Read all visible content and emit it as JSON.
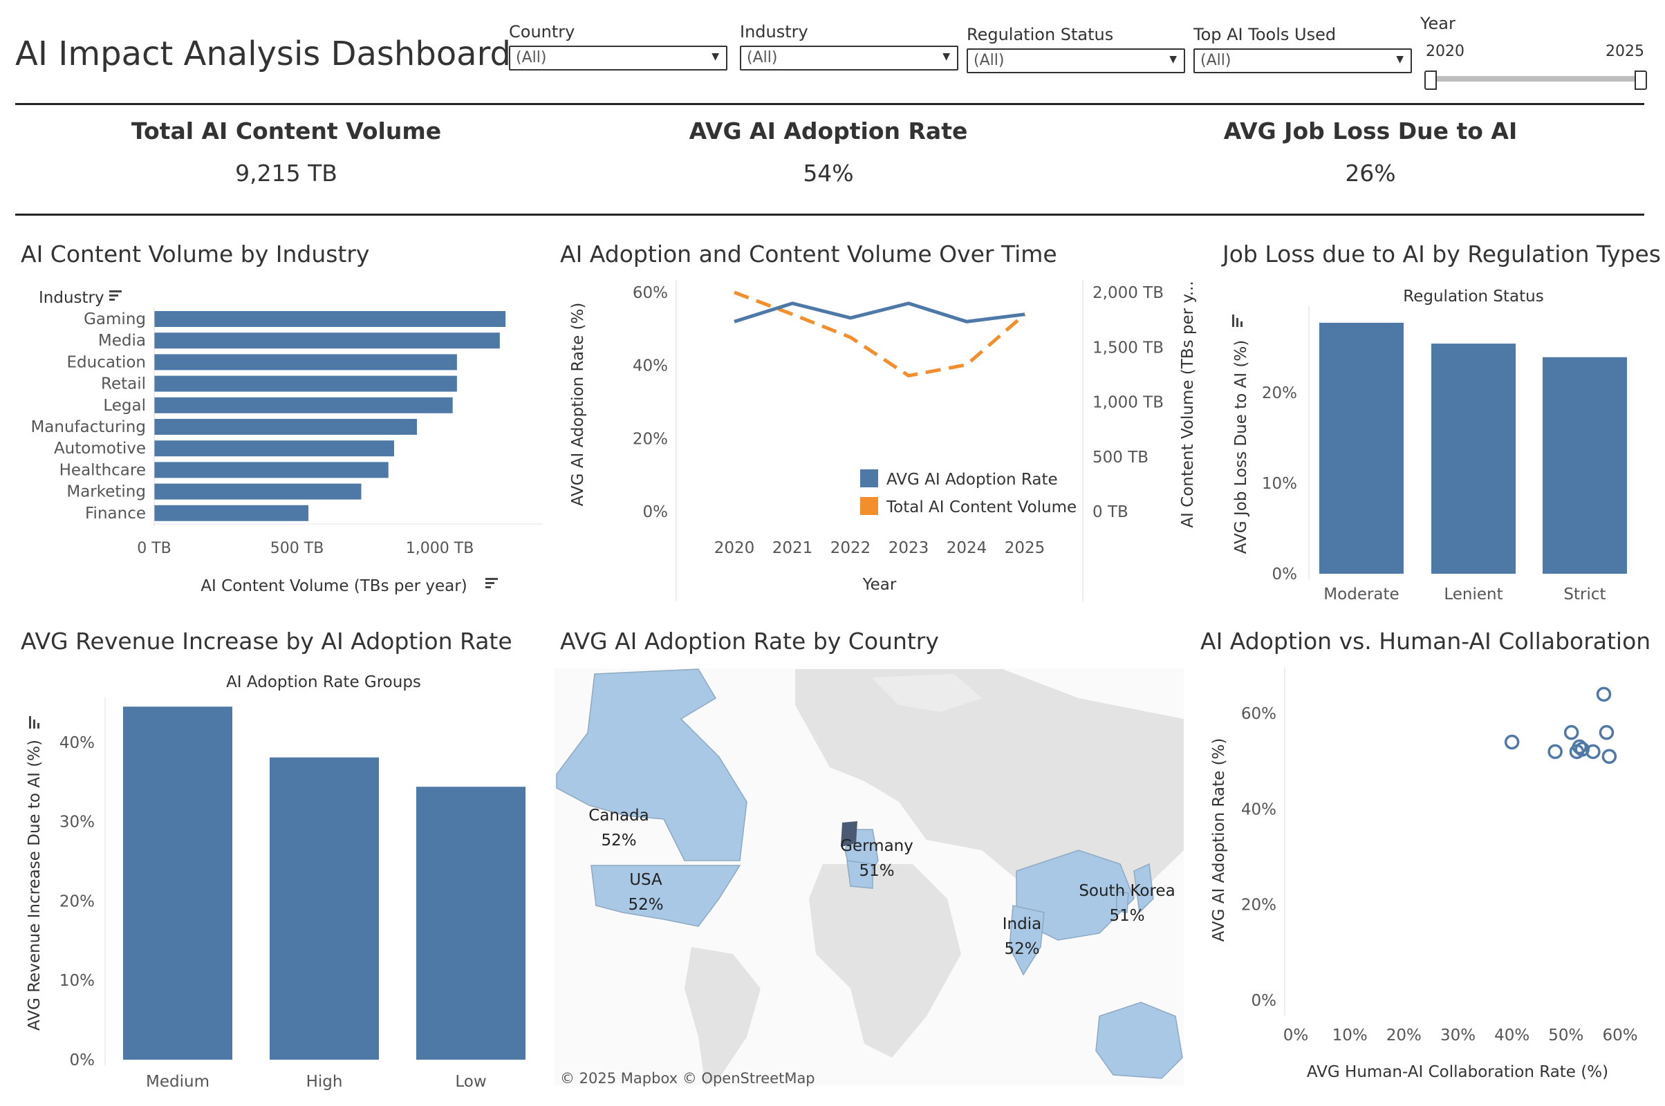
{
  "header": {
    "title": "AI Impact Analysis Dashboard"
  },
  "filters": [
    {
      "label": "Country",
      "value": "(All)"
    },
    {
      "label": "Industry",
      "value": "(All)"
    },
    {
      "label": "Regulation Status",
      "value": "(All)"
    },
    {
      "label": "Top AI Tools Used",
      "value": "(All)"
    }
  ],
  "year_slider": {
    "label": "Year",
    "min": "2020",
    "max": "2025",
    "value_min": 2020,
    "value_max": 2025
  },
  "kpis": [
    {
      "title": "Total AI Content Volume",
      "value": "9,215 TB"
    },
    {
      "title": "AVG AI Adoption Rate",
      "value": "54%"
    },
    {
      "title": "AVG Job Loss Due to AI",
      "value": "26%"
    }
  ],
  "panels": {
    "content_by_industry": {
      "title": "AI Content Volume by Industry"
    },
    "adoption_over_time": {
      "title": "AI Adoption and Content Volume Over Time"
    },
    "job_loss_regulation": {
      "title": "Job Loss due to AI by Regulation Types"
    },
    "revenue_by_adoption": {
      "title": "AVG Revenue Increase by AI Adoption Rate"
    },
    "adoption_by_country": {
      "title": "AVG AI Adoption Rate by Country",
      "attribution": "© 2025 Mapbox  © OpenStreetMap"
    },
    "adoption_vs_collab": {
      "title": "AI Adoption vs. Human-AI Collaboration"
    }
  },
  "colors": {
    "primary": "#4e79a7",
    "secondary": "#f28e2b",
    "map_fill": "#a8c8e6",
    "land": "#e3e3e3"
  },
  "map_labels": [
    {
      "name": "Canada",
      "value": "52%"
    },
    {
      "name": "USA",
      "value": "52%"
    },
    {
      "name": "Germany",
      "value": "51%"
    },
    {
      "name": "South Korea",
      "value": "51%"
    },
    {
      "name": "India",
      "value": "52%"
    }
  ],
  "chart_data": [
    {
      "type": "bar",
      "orientation": "horizontal",
      "row_header": "Industry",
      "categories": [
        "Gaming",
        "Media",
        "Education",
        "Retail",
        "Legal",
        "Manufacturing",
        "Automotive",
        "Healthcare",
        "Marketing",
        "Finance"
      ],
      "values": [
        1230,
        1210,
        1060,
        1060,
        1045,
        920,
        840,
        820,
        725,
        540
      ],
      "xlabel": "AI Content Volume (TBs per year)",
      "xticks": [
        "0 TB",
        "500 TB",
        "1,000 TB"
      ],
      "xtick_values": [
        0,
        500,
        1000
      ],
      "xlim": [
        0,
        1300
      ]
    },
    {
      "type": "line",
      "x": [
        "2020",
        "2021",
        "2022",
        "2023",
        "2024",
        "2025"
      ],
      "series": [
        {
          "name": "AVG AI Adoption Rate",
          "values": [
            52,
            57,
            53,
            57,
            52,
            54
          ],
          "axis": "left",
          "style": "solid"
        },
        {
          "name": "Total AI Content Volume",
          "values": [
            2000,
            1800,
            1590,
            1240,
            1340,
            1800
          ],
          "axis": "right",
          "style": "dashed"
        }
      ],
      "xlabel": "Year",
      "ylabel": "AVG AI Adoption Rate (%)",
      "ylabel_right": "AI Content Volume (TBs per y...",
      "yticks": [
        "0%",
        "20%",
        "40%",
        "60%"
      ],
      "ytick_values": [
        0,
        20,
        40,
        60
      ],
      "yticks_right": [
        "0 TB",
        "500 TB",
        "1,000 TB",
        "1,500 TB",
        "2,000 TB"
      ],
      "ytick_values_right": [
        0,
        500,
        1000,
        1500,
        2000
      ],
      "ylim": [
        0,
        60
      ],
      "ylim_right": [
        0,
        2000
      ],
      "legend": "bottom-right"
    },
    {
      "type": "bar",
      "group_title": "Regulation Status",
      "categories": [
        "Moderate",
        "Lenient",
        "Strict"
      ],
      "values": [
        27.7,
        25.4,
        23.9
      ],
      "ylabel": "AVG Job Loss Due to AI (%)",
      "yticks": [
        "0%",
        "10%",
        "20%"
      ],
      "ytick_values": [
        0,
        10,
        20
      ],
      "ylim": [
        0,
        28
      ]
    },
    {
      "type": "bar",
      "group_title": "AI Adoption Rate Groups",
      "categories": [
        "Medium",
        "High",
        "Low"
      ],
      "values": [
        44.5,
        38.1,
        34.4
      ],
      "ylabel": "AVG Revenue Increase Due to AI (%)",
      "yticks": [
        "0%",
        "10%",
        "20%",
        "30%",
        "40%"
      ],
      "ytick_values": [
        0,
        10,
        20,
        30,
        40
      ],
      "ylim": [
        0,
        44
      ]
    },
    {
      "type": "scatter",
      "points": [
        [
          40,
          54
        ],
        [
          48,
          52
        ],
        [
          51,
          56
        ],
        [
          52,
          52
        ],
        [
          52.5,
          53
        ],
        [
          53,
          52.5
        ],
        [
          55,
          52
        ],
        [
          57,
          64
        ],
        [
          57.5,
          56
        ],
        [
          58,
          51
        ]
      ],
      "xlabel": "AVG Human-AI Collaboration Rate (%)",
      "ylabel": "AVG AI Adoption Rate (%)",
      "xticks": [
        "0%",
        "10%",
        "20%",
        "30%",
        "40%",
        "50%",
        "60%"
      ],
      "xtick_values": [
        0,
        10,
        20,
        30,
        40,
        50,
        60
      ],
      "yticks": [
        "0%",
        "20%",
        "40%",
        "60%"
      ],
      "ytick_values": [
        0,
        20,
        40,
        60
      ],
      "xlim": [
        0,
        60
      ],
      "ylim": [
        0,
        60
      ]
    }
  ]
}
